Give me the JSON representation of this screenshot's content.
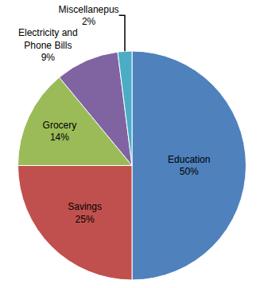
{
  "chart_data": {
    "type": "pie",
    "categories": [
      "Education",
      "Savings",
      "Grocery",
      "Electricity and Phone Bills",
      "Miscellanepus"
    ],
    "values": [
      50,
      25,
      14,
      9,
      2
    ],
    "value_labels": [
      "50%",
      "25%",
      "14%",
      "9%",
      "2%"
    ],
    "colors": [
      "#4f81bd",
      "#c0504d",
      "#9bbb59",
      "#8064a2",
      "#4bacc6"
    ],
    "data_labels": true
  }
}
